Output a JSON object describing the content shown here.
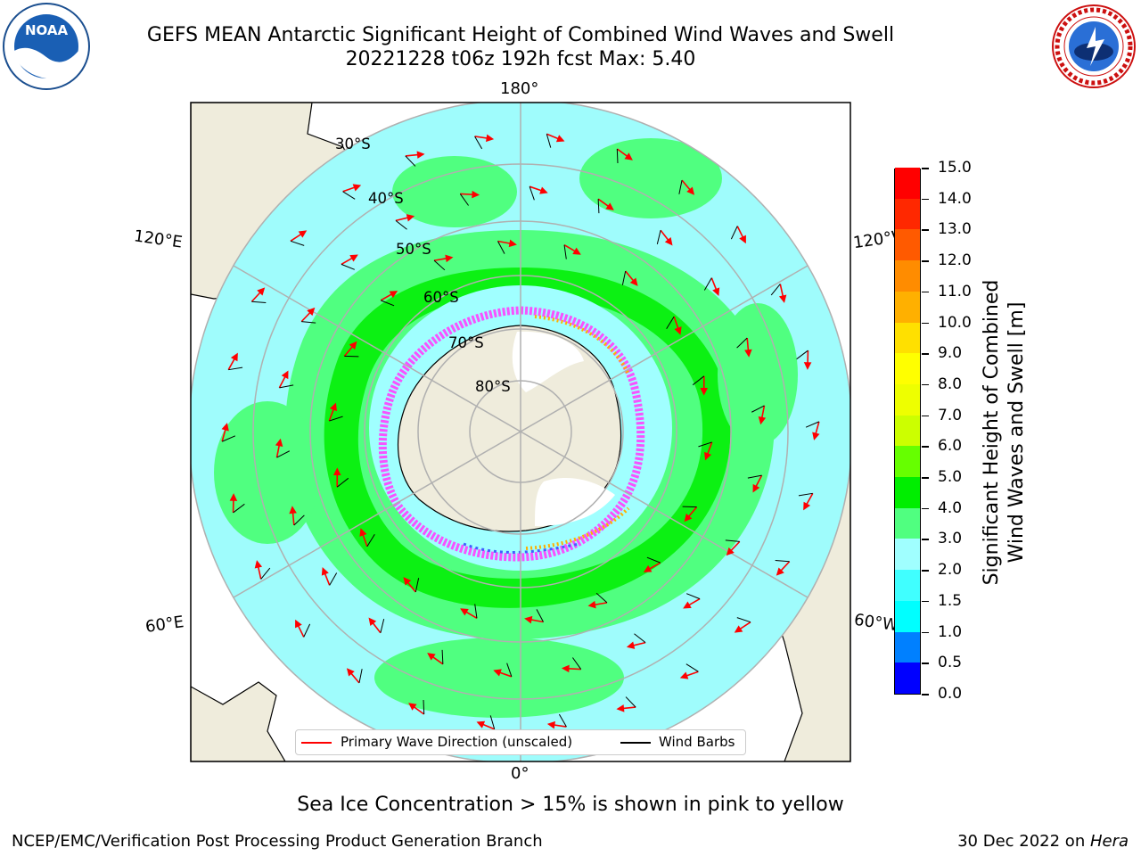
{
  "header": {
    "title_line1": "GEFS MEAN Antarctic Significant Height of Combined Wind Waves and Swell",
    "title_line2": "20221228 t06z 192h fcst   Max: 5.40"
  },
  "logos": {
    "left": "NOAA",
    "right": "NATIONAL WEATHER SERVICE"
  },
  "map": {
    "projection": "south-polar-stereographic",
    "longitude_labels": {
      "top": "180°",
      "bottom": "0°",
      "left_upper": "120°E",
      "left_lower": "60°E",
      "right_upper": "120°W",
      "right_lower": "60°W"
    },
    "latitude_labels": [
      "30°S",
      "40°S",
      "50°S",
      "60°S",
      "70°S",
      "80°S"
    ],
    "land_color": "#efecdc",
    "ocean_base_color": "#9ffcfc"
  },
  "colorbar": {
    "label": "Significant Height of Combined\nWind Waves and Swell [m]",
    "ticks": [
      "0.0",
      "0.5",
      "1.0",
      "1.5",
      "2.0",
      "3.0",
      "4.0",
      "5.0",
      "6.0",
      "7.0",
      "8.0",
      "9.0",
      "10.0",
      "11.0",
      "12.0",
      "13.0",
      "14.0",
      "15.0"
    ],
    "colors": [
      "#0000ff",
      "#0080ff",
      "#00ffff",
      "#40ffff",
      "#a0ffff",
      "#50ff80",
      "#00ee00",
      "#66ff00",
      "#ccff00",
      "#eeff00",
      "#ffff00",
      "#ffe000",
      "#ffb000",
      "#ff8c00",
      "#ff5a00",
      "#ff2800",
      "#ff0000"
    ]
  },
  "legend": {
    "primary_wave": "Primary Wave Direction (unscaled)",
    "wind_barbs": "Wind Barbs",
    "primary_wave_color": "#ff0000",
    "wind_barbs_color": "#000000"
  },
  "caption": "Sea Ice Concentration > 15% is shown in pink to yellow",
  "footer": {
    "left": "NCEP/EMC/Verification Post Processing Product Generation Branch",
    "date": "30 Dec 2022 on ",
    "machine": "Hera"
  }
}
